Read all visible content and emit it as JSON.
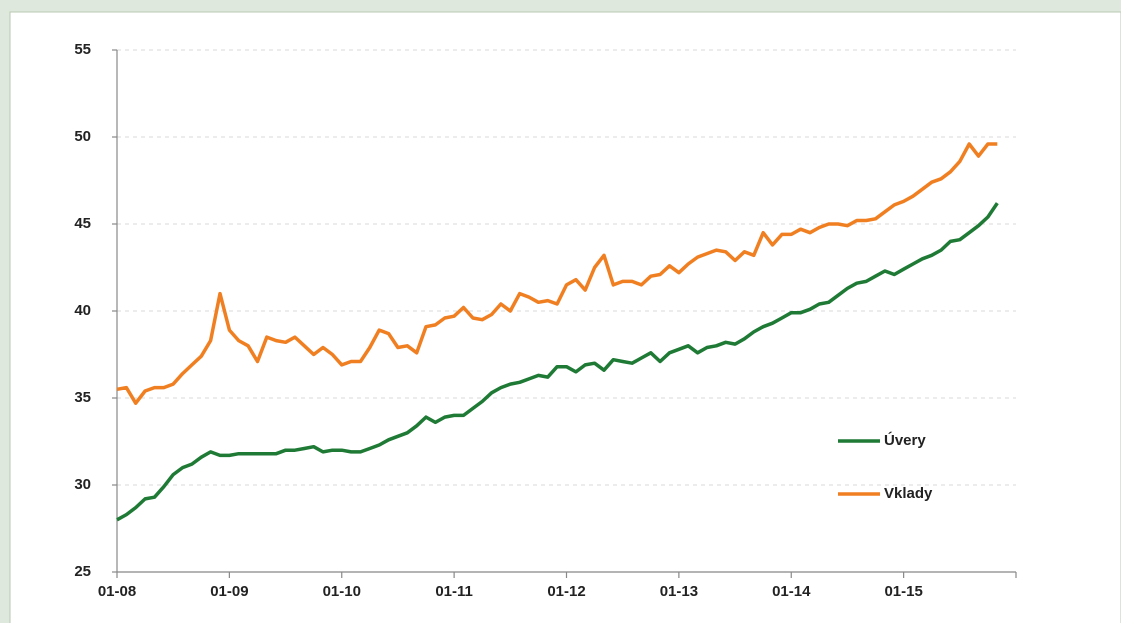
{
  "chart_data": {
    "type": "line",
    "categories": [
      "01-08",
      null,
      null,
      null,
      null,
      null,
      null,
      null,
      null,
      null,
      null,
      null,
      "01-09",
      null,
      null,
      null,
      null,
      null,
      null,
      null,
      null,
      null,
      null,
      null,
      "01-10",
      null,
      null,
      null,
      null,
      null,
      null,
      null,
      null,
      null,
      null,
      null,
      "01-11",
      null,
      null,
      null,
      null,
      null,
      null,
      null,
      null,
      null,
      null,
      null,
      "01-12",
      null,
      null,
      null,
      null,
      null,
      null,
      null,
      null,
      null,
      null,
      null,
      "01-13",
      null,
      null,
      null,
      null,
      null,
      null,
      null,
      null,
      null,
      null,
      null,
      "01-14",
      null,
      null,
      null,
      null,
      null,
      null,
      null,
      null,
      null,
      null,
      null,
      "01-15",
      null,
      null,
      null,
      null,
      null,
      null,
      null,
      null,
      null,
      null
    ],
    "series": [
      {
        "name": "Úvery",
        "color": "#1e7a35",
        "values": [
          28.0,
          28.3,
          28.7,
          29.2,
          29.3,
          29.9,
          30.6,
          31.0,
          31.2,
          31.6,
          31.9,
          31.7,
          31.7,
          31.8,
          31.8,
          31.8,
          31.8,
          31.8,
          32.0,
          32.0,
          32.1,
          32.2,
          31.9,
          32.0,
          32.0,
          31.9,
          31.9,
          32.1,
          32.3,
          32.6,
          32.8,
          33.0,
          33.4,
          33.9,
          33.6,
          33.9,
          34.0,
          34.0,
          34.4,
          34.8,
          35.3,
          35.6,
          35.8,
          35.9,
          36.1,
          36.3,
          36.2,
          36.8,
          36.8,
          36.5,
          36.9,
          37.0,
          36.6,
          37.2,
          37.1,
          37.0,
          37.3,
          37.6,
          37.1,
          37.6,
          37.8,
          38.0,
          37.6,
          37.9,
          38.0,
          38.2,
          38.1,
          38.4,
          38.8,
          39.1,
          39.3,
          39.6,
          39.9,
          39.9,
          40.1,
          40.4,
          40.5,
          40.9,
          41.3,
          41.6,
          41.7,
          42.0,
          42.3,
          42.1,
          42.4,
          42.7,
          43.0,
          43.2,
          43.5,
          44.0,
          44.1,
          44.5,
          44.9,
          45.4,
          46.2
        ]
      },
      {
        "name": "Vklady",
        "color": "#f07f22",
        "values": [
          35.5,
          35.6,
          34.7,
          35.4,
          35.6,
          35.6,
          35.8,
          36.4,
          36.9,
          37.4,
          38.3,
          41.0,
          38.9,
          38.3,
          38.0,
          37.1,
          38.5,
          38.3,
          38.2,
          38.5,
          38.0,
          37.5,
          37.9,
          37.5,
          36.9,
          37.1,
          37.1,
          37.9,
          38.9,
          38.7,
          37.9,
          38.0,
          37.6,
          39.1,
          39.2,
          39.6,
          39.7,
          40.2,
          39.6,
          39.5,
          39.8,
          40.4,
          40.0,
          41.0,
          40.8,
          40.5,
          40.6,
          40.4,
          41.5,
          41.8,
          41.2,
          42.5,
          43.2,
          41.5,
          41.7,
          41.7,
          41.5,
          42.0,
          42.1,
          42.6,
          42.2,
          42.7,
          43.1,
          43.3,
          43.5,
          43.4,
          42.9,
          43.4,
          43.2,
          44.5,
          43.8,
          44.4,
          44.4,
          44.7,
          44.5,
          44.8,
          45.0,
          45.0,
          44.9,
          45.2,
          45.2,
          45.3,
          45.7,
          46.1,
          46.3,
          46.6,
          47.0,
          47.4,
          47.6,
          48.0,
          48.6,
          49.6,
          48.9,
          49.6,
          49.6
        ]
      }
    ],
    "ylim": [
      25,
      55
    ],
    "yticks": [
      25,
      30,
      35,
      40,
      45,
      50,
      55
    ],
    "grid": true,
    "legend": "right"
  }
}
